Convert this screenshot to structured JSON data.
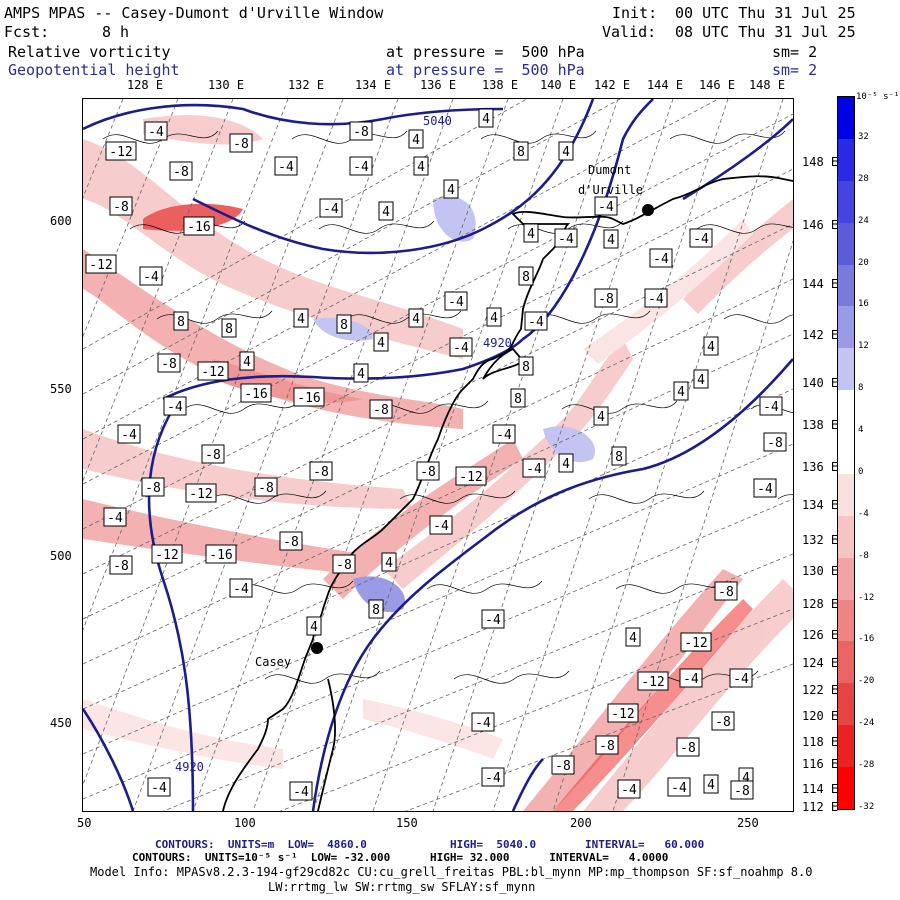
{
  "header": {
    "title": "AMPS MPAS -- Casey-Dumont d'Urville Window",
    "init_label": "Init:",
    "init_value": "00 UTC Thu 31 Jul 25",
    "fcst_label": "Fcst:",
    "fcst_value": "8 h",
    "valid_label": "Valid:",
    "valid_value": "08 UTC Thu 31 Jul 25",
    "field1_name": "Relative vorticity",
    "field1_level": "at pressure =  500 hPa",
    "field1_sm": "sm= 2",
    "field2_name": "Geopotential height",
    "field2_level": "at pressure =  500 hPa",
    "field2_sm": "sm= 2"
  },
  "axes": {
    "top_lon_labels": [
      "128 E",
      "130 E",
      "132 E",
      "134 E",
      "136 E",
      "138 E",
      "140 E",
      "142 E",
      "144 E",
      "146 E",
      "148 E"
    ],
    "right_lat_labels": [
      "148 E",
      "146 E",
      "144 E",
      "142 E",
      "140 E",
      "138 E",
      "136 E",
      "134 E",
      "132 E",
      "130 E",
      "128 E",
      "126 E",
      "124 E",
      "122 E",
      "120 E",
      "118 E",
      "116 E",
      "114 E",
      "112 E"
    ],
    "left_labels": [
      "600",
      "550",
      "500",
      "450"
    ],
    "bottom_labels": [
      "50",
      "100",
      "150",
      "200",
      "250"
    ]
  },
  "colorbar": {
    "unit": "10⁻⁵ s⁻¹",
    "labels": [
      "32",
      "28",
      "24",
      "20",
      "16",
      "12",
      "8",
      "4",
      "0",
      "-4",
      "-8",
      "-12",
      "-16",
      "-20",
      "-24",
      "-28",
      "-32"
    ],
    "colors": [
      "#0000e6",
      "#2a2ae6",
      "#4444e0",
      "#5c5cd8",
      "#7a7ad8",
      "#9a9ae6",
      "#c4c4f2",
      "#ffffff",
      "#ffffff",
      "#fbe0e0",
      "#f6c4c4",
      "#f2a4a4",
      "#ee8484",
      "#ea6464",
      "#e84444",
      "#ec2222",
      "#ff0000"
    ]
  },
  "map_labels": {
    "station1": "Dumont",
    "station1b": "d'Urville",
    "station2": "Casey",
    "height1": "5040",
    "height2": "4920",
    "height3": "4920",
    "vort_labels": [
      [
        "-4",
        155,
        130
      ],
      [
        "-8",
        240,
        142
      ],
      [
        "-12",
        120,
        150
      ],
      [
        "-4",
        285,
        165
      ],
      [
        "-8",
        180,
        170
      ],
      [
        "-4",
        360,
        165
      ],
      [
        "-8",
        360,
        130
      ],
      [
        "4",
        415,
        138
      ],
      [
        "4",
        485,
        117
      ],
      [
        "4",
        420,
        165
      ],
      [
        "4",
        450,
        188
      ],
      [
        "4",
        385,
        210
      ],
      [
        "8",
        520,
        150
      ],
      [
        "4",
        565,
        150
      ],
      [
        "-4",
        330,
        207
      ],
      [
        "-8",
        120,
        205
      ],
      [
        "-16",
        198,
        225
      ],
      [
        "-4",
        605,
        205
      ],
      [
        "4",
        530,
        232
      ],
      [
        "-4",
        565,
        237
      ],
      [
        "4",
        610,
        238
      ],
      [
        "-4",
        700,
        237
      ],
      [
        "-4",
        660,
        257
      ],
      [
        "-12",
        100,
        263
      ],
      [
        "-4",
        150,
        275
      ],
      [
        "8",
        525,
        275
      ],
      [
        "-4",
        455,
        300
      ],
      [
        "-8",
        605,
        297
      ],
      [
        "-4",
        655,
        297
      ],
      [
        "8",
        180,
        320
      ],
      [
        "8",
        228,
        327
      ],
      [
        "4",
        300,
        317
      ],
      [
        "8",
        343,
        323
      ],
      [
        "4",
        415,
        317
      ],
      [
        "4",
        493,
        316
      ],
      [
        "-4",
        535,
        320
      ],
      [
        "4",
        380,
        341
      ],
      [
        "-4",
        460,
        346
      ],
      [
        "4",
        710,
        345
      ],
      [
        "-8",
        168,
        362
      ],
      [
        "4",
        246,
        360
      ],
      [
        "-12",
        212,
        370
      ],
      [
        "4",
        360,
        372
      ],
      [
        "8",
        525,
        365
      ],
      [
        "-16",
        255,
        392
      ],
      [
        "-16",
        308,
        396
      ],
      [
        "-8",
        380,
        408
      ],
      [
        "4",
        700,
        378
      ],
      [
        "-4",
        174,
        405
      ],
      [
        "8",
        517,
        397
      ],
      [
        "4",
        680,
        390
      ],
      [
        "-4",
        770,
        405
      ],
      [
        "-4",
        128,
        433
      ],
      [
        "4",
        600,
        415
      ],
      [
        "4",
        565,
        462
      ],
      [
        "-4",
        503,
        433
      ],
      [
        "-8",
        774,
        441
      ],
      [
        "-8",
        212,
        453
      ],
      [
        "-8",
        320,
        470
      ],
      [
        "-8",
        427,
        470
      ],
      [
        "-12",
        470,
        475
      ],
      [
        "-4",
        533,
        467
      ],
      [
        "8",
        618,
        455
      ],
      [
        "-8",
        152,
        486
      ],
      [
        "-12",
        200,
        492
      ],
      [
        "-8",
        265,
        486
      ],
      [
        "-4",
        764,
        487
      ],
      [
        "-4",
        114,
        516
      ],
      [
        "-4",
        440,
        524
      ],
      [
        "-8",
        290,
        540
      ],
      [
        "-12",
        166,
        553
      ],
      [
        "-16",
        220,
        553
      ],
      [
        "-8",
        120,
        564
      ],
      [
        "-8",
        343,
        563
      ],
      [
        "4",
        388,
        561
      ],
      [
        "-4",
        240,
        587
      ],
      [
        "8",
        375,
        608
      ],
      [
        "-4",
        492,
        618
      ],
      [
        "-8",
        725,
        590
      ],
      [
        "4",
        313,
        625
      ],
      [
        "4",
        632,
        636
      ],
      [
        "-12",
        695,
        641
      ],
      [
        "-12",
        652,
        680
      ],
      [
        "-4",
        690,
        677
      ],
      [
        "-4",
        740,
        677
      ],
      [
        "-12",
        622,
        712
      ],
      [
        "-8",
        722,
        720
      ],
      [
        "-4",
        482,
        721
      ],
      [
        "-8",
        606,
        744
      ],
      [
        "-8",
        687,
        746
      ],
      [
        "-4",
        158,
        786
      ],
      [
        "-4",
        300,
        790
      ],
      [
        "-4",
        492,
        776
      ],
      [
        "-8",
        562,
        764
      ],
      [
        "-4",
        628,
        788
      ],
      [
        "-4",
        678,
        786
      ],
      [
        "4",
        710,
        783
      ],
      [
        "4",
        745,
        776
      ],
      [
        "-8",
        741,
        789
      ]
    ]
  },
  "footer": {
    "line1_a": "CONTOURS:  UNITS=m  LOW=  4860.0",
    "line1_b": "HIGH=  5040.0",
    "line1_c": "INTERVAL=   60.000",
    "line2": "CONTOURS:  UNITS=10⁻⁵ s⁻¹  LOW= -32.000      HIGH= 32.000      INTERVAL=   4.0000",
    "line3": "Model Info: MPASv8.2.3-194-gf29cd82c CU:cu_grell_freitas PBL:bl_mynn MP:mp_thompson SF:sf_noahmp 8.0",
    "line4": "LW:rrtmg_lw SW:rrtmg_sw SFLAY:sf_mynn"
  }
}
